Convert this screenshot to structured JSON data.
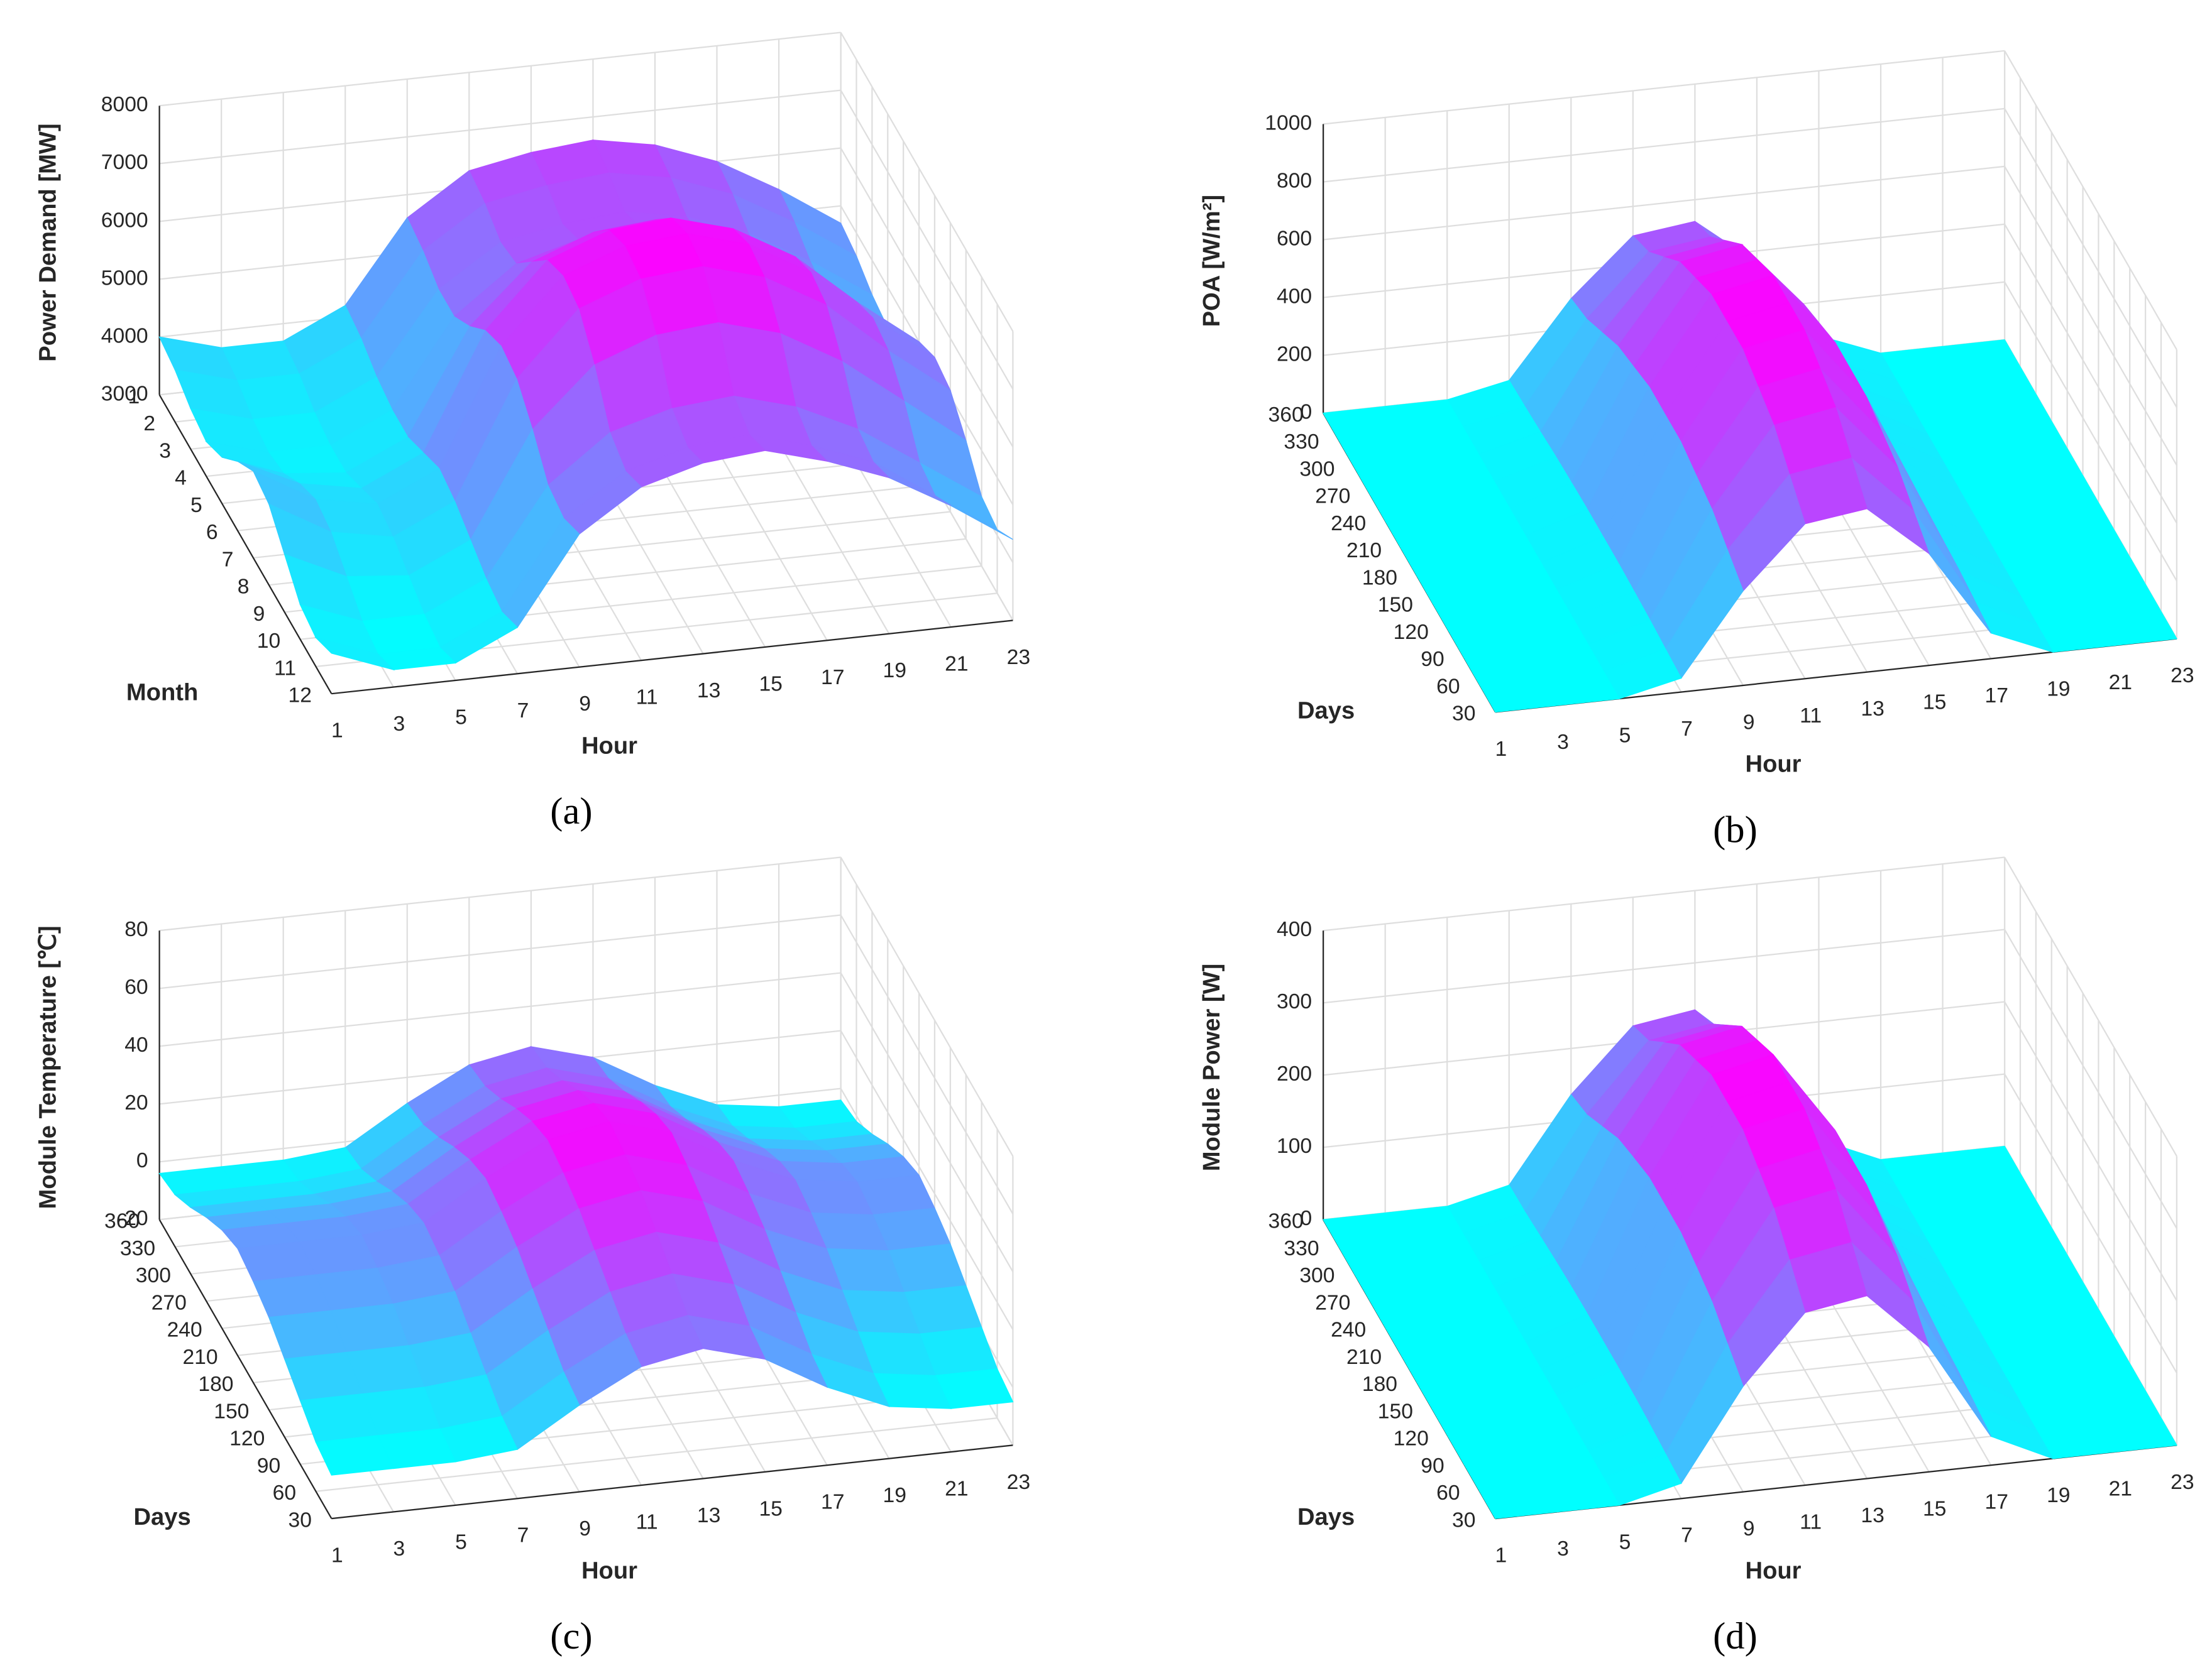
{
  "chart_data": [
    {
      "type": "surface",
      "panel_label": "(a)",
      "xlabel": "Hour",
      "ylabel": "Month",
      "zlabel": "Power Demand [MW]",
      "colormap": [
        "#00ffff",
        "#ff00ff"
      ],
      "grid": true,
      "xlim": [
        1,
        23
      ],
      "ylim": [
        1,
        12
      ],
      "zlim": [
        3000,
        8000
      ],
      "xticks": [
        1,
        3,
        5,
        7,
        9,
        11,
        13,
        15,
        17,
        19,
        21,
        23
      ],
      "yticks": [
        1,
        2,
        3,
        4,
        5,
        6,
        7,
        8,
        9,
        10,
        11,
        12
      ],
      "zticks": [
        3000,
        4000,
        5000,
        6000,
        7000,
        8000
      ],
      "x": [
        1,
        3,
        5,
        7,
        9,
        11,
        13,
        15,
        17,
        19,
        21,
        23
      ],
      "y": [
        1,
        2,
        3,
        4,
        5,
        6,
        7,
        8,
        9,
        10,
        11,
        12
      ],
      "values": [
        [
          4000,
          3700,
          3700,
          4200,
          5600,
          6300,
          6500,
          6600,
          6400,
          6000,
          5400,
          4700
        ],
        [
          3900,
          3600,
          3600,
          4100,
          5500,
          6200,
          6400,
          6500,
          6300,
          5900,
          5300,
          4600
        ],
        [
          3700,
          3400,
          3400,
          3900,
          5300,
          6000,
          6200,
          6300,
          6100,
          5700,
          5100,
          4400
        ],
        [
          3600,
          3300,
          3300,
          3800,
          5300,
          6100,
          6400,
          6500,
          6200,
          5700,
          5000,
          4300
        ],
        [
          3800,
          3400,
          3300,
          3800,
          5600,
          6600,
          7000,
          7100,
          6800,
          6200,
          5400,
          4600
        ],
        [
          4200,
          3700,
          3500,
          4000,
          6000,
          7100,
          7500,
          7600,
          7300,
          6700,
          5800,
          5000
        ],
        [
          4500,
          3900,
          3700,
          4200,
          6200,
          7300,
          7700,
          7800,
          7500,
          6900,
          6000,
          5200
        ],
        [
          4400,
          3800,
          3600,
          4100,
          6100,
          7200,
          7600,
          7700,
          7400,
          6800,
          5900,
          5100
        ],
        [
          4000,
          3500,
          3400,
          3900,
          5700,
          6700,
          7100,
          7200,
          6900,
          6300,
          5500,
          4700
        ],
        [
          3600,
          3200,
          3200,
          3700,
          5200,
          6000,
          6300,
          6400,
          6100,
          5600,
          4900,
          4200
        ],
        [
          3500,
          3100,
          3100,
          3600,
          5100,
          5800,
          6100,
          6200,
          5900,
          5500,
          4800,
          4100
        ],
        [
          3700,
          3300,
          3300,
          3800,
          5300,
          6000,
          6300,
          6400,
          6100,
          5700,
          5100,
          4400
        ]
      ]
    },
    {
      "type": "surface",
      "panel_label": "(b)",
      "xlabel": "Hour",
      "ylabel": "Days",
      "zlabel": "POA [W/m²]",
      "colormap": [
        "#00ffff",
        "#ff00ff"
      ],
      "grid": true,
      "xlim": [
        1,
        23
      ],
      "ylim": [
        360,
        30
      ],
      "zlim": [
        0,
        1000
      ],
      "xticks": [
        1,
        3,
        5,
        7,
        9,
        11,
        13,
        15,
        17,
        19,
        21,
        23
      ],
      "yticks": [
        360,
        330,
        300,
        270,
        240,
        210,
        180,
        150,
        120,
        90,
        60,
        30
      ],
      "zticks": [
        0,
        200,
        400,
        600,
        800,
        1000
      ],
      "x": [
        1,
        3,
        5,
        7,
        9,
        11,
        13,
        15,
        17,
        19,
        21,
        23
      ],
      "y": [
        360,
        330,
        300,
        270,
        240,
        210,
        180,
        150,
        120,
        90,
        60,
        30
      ],
      "values": [
        [
          0,
          0,
          0,
          44,
          304,
          498,
          525,
          359,
          83,
          0,
          0,
          0
        ],
        [
          0,
          0,
          0,
          48,
          327,
          536,
          565,
          387,
          89,
          0,
          0,
          0
        ],
        [
          0,
          0,
          0,
          54,
          374,
          612,
          646,
          442,
          102,
          0,
          0,
          0
        ],
        [
          0,
          0,
          0,
          61,
          421,
          689,
          727,
          497,
          115,
          0,
          0,
          0
        ],
        [
          0,
          0,
          0,
          65,
          444,
          727,
          768,
          525,
          121,
          0,
          0,
          0
        ],
        [
          0,
          0,
          0,
          68,
          468,
          765,
          808,
          553,
          128,
          0,
          0,
          0
        ],
        [
          0,
          0,
          0,
          68,
          468,
          765,
          808,
          553,
          128,
          0,
          0,
          0
        ],
        [
          0,
          0,
          0,
          68,
          468,
          765,
          808,
          553,
          128,
          0,
          0,
          0
        ],
        [
          0,
          0,
          0,
          65,
          444,
          727,
          768,
          525,
          121,
          0,
          0,
          0
        ],
        [
          0,
          0,
          0,
          61,
          421,
          689,
          727,
          497,
          115,
          0,
          0,
          0
        ],
        [
          0,
          0,
          0,
          54,
          374,
          612,
          646,
          442,
          102,
          0,
          0,
          0
        ],
        [
          0,
          0,
          0,
          48,
          327,
          536,
          565,
          387,
          89,
          0,
          0,
          0
        ]
      ]
    },
    {
      "type": "surface",
      "panel_label": "(c)",
      "xlabel": "Hour",
      "ylabel": "Days",
      "zlabel": "Module Temperature [℃]",
      "colormap": [
        "#00ffff",
        "#ff00ff"
      ],
      "grid": true,
      "xlim": [
        1,
        23
      ],
      "ylim": [
        360,
        30
      ],
      "zlim": [
        -20,
        80
      ],
      "xticks": [
        1,
        3,
        5,
        7,
        9,
        11,
        13,
        15,
        17,
        19,
        21,
        23
      ],
      "yticks": [
        360,
        330,
        300,
        270,
        240,
        210,
        180,
        150,
        120,
        90,
        60,
        30
      ],
      "zticks": [
        -20,
        0,
        20,
        40,
        60,
        80
      ],
      "x": [
        1,
        3,
        5,
        7,
        9,
        11,
        13,
        15,
        17,
        19,
        21,
        23
      ],
      "y": [
        360,
        330,
        300,
        270,
        240,
        210,
        180,
        150,
        120,
        90,
        60,
        30
      ],
      "values": [
        [
          -4,
          -4,
          -4,
          -2,
          11,
          22,
          26,
          20,
          8,
          -1,
          -4,
          -4
        ],
        [
          -2,
          -2,
          -2,
          0,
          13,
          24,
          28,
          22,
          10,
          1,
          -2,
          -2
        ],
        [
          3,
          3,
          3,
          5,
          18,
          29,
          33,
          27,
          15,
          6,
          3,
          3
        ],
        [
          9,
          9,
          9,
          11,
          24,
          35,
          39,
          33,
          21,
          12,
          9,
          9
        ],
        [
          14,
          14,
          14,
          16,
          29,
          40,
          44,
          38,
          26,
          17,
          14,
          14
        ],
        [
          17,
          17,
          17,
          19,
          32,
          43,
          47,
          41,
          29,
          20,
          17,
          17
        ],
        [
          15,
          15,
          15,
          17,
          30,
          41,
          45,
          39,
          27,
          18,
          15,
          15
        ],
        [
          12,
          12,
          12,
          14,
          27,
          38,
          42,
          36,
          24,
          15,
          12,
          12
        ],
        [
          7,
          7,
          7,
          9,
          22,
          33,
          37,
          31,
          19,
          10,
          7,
          7
        ],
        [
          2,
          2,
          2,
          4,
          17,
          28,
          32,
          26,
          14,
          5,
          2,
          2
        ],
        [
          -3,
          -3,
          -3,
          -1,
          12,
          23,
          27,
          21,
          9,
          0,
          -3,
          -3
        ],
        [
          -5,
          -5,
          -5,
          -3,
          10,
          21,
          25,
          19,
          7,
          -2,
          -5,
          -5
        ]
      ]
    },
    {
      "type": "surface",
      "panel_label": "(d)",
      "xlabel": "Hour",
      "ylabel": "Days",
      "zlabel": "Module Power [W]",
      "colormap": [
        "#00ffff",
        "#ff00ff"
      ],
      "grid": true,
      "xlim": [
        1,
        23
      ],
      "ylim": [
        360,
        30
      ],
      "zlim": [
        0,
        400
      ],
      "xticks": [
        1,
        3,
        5,
        7,
        9,
        11,
        13,
        15,
        17,
        19,
        21,
        23
      ],
      "yticks": [
        360,
        330,
        300,
        270,
        240,
        210,
        180,
        150,
        120,
        90,
        60,
        30
      ],
      "zticks": [
        0,
        100,
        200,
        300,
        400
      ],
      "x": [
        1,
        3,
        5,
        7,
        9,
        11,
        13,
        15,
        17,
        19,
        21,
        23
      ],
      "y": [
        360,
        330,
        300,
        270,
        240,
        210,
        180,
        150,
        120,
        90,
        60,
        30
      ],
      "values": [
        [
          0,
          0,
          0,
          20,
          136,
          222,
          235,
          161,
          37,
          0,
          0,
          0
        ],
        [
          0,
          0,
          0,
          21,
          146,
          239,
          253,
          173,
          40,
          0,
          0,
          0
        ],
        [
          0,
          0,
          0,
          24,
          167,
          274,
          289,
          198,
          46,
          0,
          0,
          0
        ],
        [
          0,
          0,
          0,
          27,
          188,
          308,
          325,
          222,
          51,
          0,
          0,
          0
        ],
        [
          0,
          0,
          0,
          29,
          199,
          325,
          343,
          235,
          54,
          0,
          0,
          0
        ],
        [
          0,
          0,
          0,
          30,
          209,
          342,
          361,
          247,
          57,
          0,
          0,
          0
        ],
        [
          0,
          0,
          0,
          30,
          209,
          342,
          361,
          247,
          57,
          0,
          0,
          0
        ],
        [
          0,
          0,
          0,
          30,
          209,
          342,
          361,
          247,
          57,
          0,
          0,
          0
        ],
        [
          0,
          0,
          0,
          29,
          199,
          325,
          343,
          235,
          54,
          0,
          0,
          0
        ],
        [
          0,
          0,
          0,
          27,
          188,
          308,
          325,
          222,
          51,
          0,
          0,
          0
        ],
        [
          0,
          0,
          0,
          24,
          167,
          274,
          289,
          198,
          46,
          0,
          0,
          0
        ],
        [
          0,
          0,
          0,
          21,
          146,
          239,
          253,
          173,
          40,
          0,
          0,
          0
        ]
      ]
    }
  ]
}
